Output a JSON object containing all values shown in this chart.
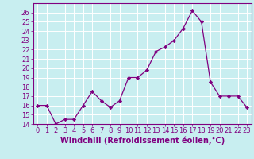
{
  "x": [
    0,
    1,
    2,
    3,
    4,
    5,
    6,
    7,
    8,
    9,
    10,
    11,
    12,
    13,
    14,
    15,
    16,
    17,
    18,
    19,
    20,
    21,
    22,
    23
  ],
  "y": [
    16,
    16,
    14,
    14.5,
    14.5,
    16,
    17.5,
    16.5,
    15.8,
    16.5,
    19,
    19,
    19.8,
    21.8,
    22.3,
    23,
    24.3,
    26.2,
    25,
    18.5,
    17,
    17,
    17,
    15.8
  ],
  "line_color": "#800080",
  "marker": "D",
  "marker_size": 2.2,
  "bg_color": "#c8eef0",
  "grid_color": "#ffffff",
  "xlabel": "Windchill (Refroidissement éolien,°C)",
  "ylim": [
    14,
    27
  ],
  "xlim_min": -0.5,
  "xlim_max": 23.5,
  "yticks": [
    14,
    15,
    16,
    17,
    18,
    19,
    20,
    21,
    22,
    23,
    24,
    25,
    26
  ],
  "xticks": [
    0,
    1,
    2,
    3,
    4,
    5,
    6,
    7,
    8,
    9,
    10,
    11,
    12,
    13,
    14,
    15,
    16,
    17,
    18,
    19,
    20,
    21,
    22,
    23
  ],
  "tick_color": "#800080",
  "label_color": "#800080",
  "spine_color": "#800080",
  "xlabel_fontsize": 7.0,
  "tick_fontsize": 6.0
}
